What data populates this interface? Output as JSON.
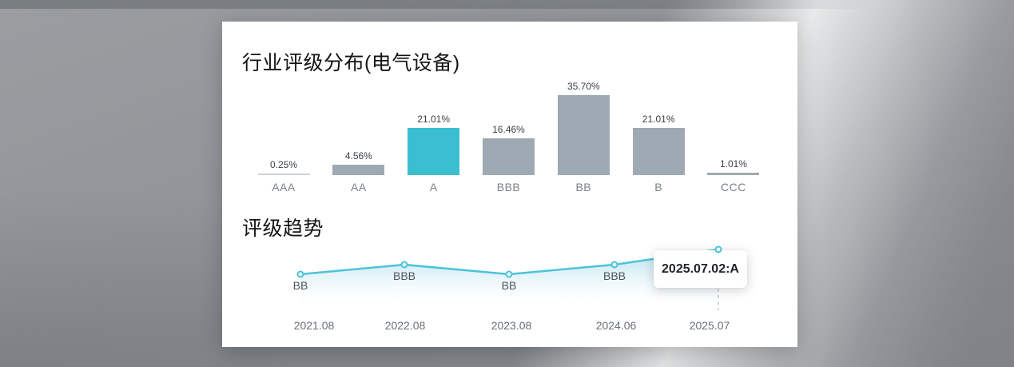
{
  "card": {
    "bar_section_title": "行业评级分布(电气设备)",
    "trend_section_title": "评级趋势"
  },
  "colors": {
    "highlight": "#3bbfd0",
    "bar_gray": "#9fa9b3",
    "bar_faint": "#ccd2d8",
    "line": "#4cc3d8",
    "marker_fill": "#eafaff",
    "area_top": "#c2e5f2",
    "dashed_guide": "#c3c8cd"
  },
  "chart_data": [
    {
      "type": "bar",
      "title": "行业评级分布(电气设备)",
      "categories": [
        "AAA",
        "AA",
        "A",
        "BBB",
        "BB",
        "B",
        "CCC"
      ],
      "values": [
        0.25,
        4.56,
        21.01,
        16.46,
        35.7,
        21.01,
        1.01
      ],
      "value_labels": [
        "0.25%",
        "4.56%",
        "21.01%",
        "16.46%",
        "35.70%",
        "21.01%",
        "1.01%"
      ],
      "highlighted_category": "A",
      "unit": "%",
      "ylim": [
        0,
        40
      ],
      "grid": false,
      "legend": false
    },
    {
      "type": "line",
      "title": "评级趋势",
      "x": [
        "2021.08",
        "2022.08",
        "2023.08",
        "2024.06",
        "2025.07"
      ],
      "ratings": [
        "BB",
        "BBB",
        "BB",
        "BBB",
        "A"
      ],
      "rating_scale_shown": [
        "BB",
        "BBB",
        "A"
      ],
      "tooltip": "2025.07.02:A",
      "area_fill": true,
      "grid": false,
      "legend": false
    }
  ]
}
